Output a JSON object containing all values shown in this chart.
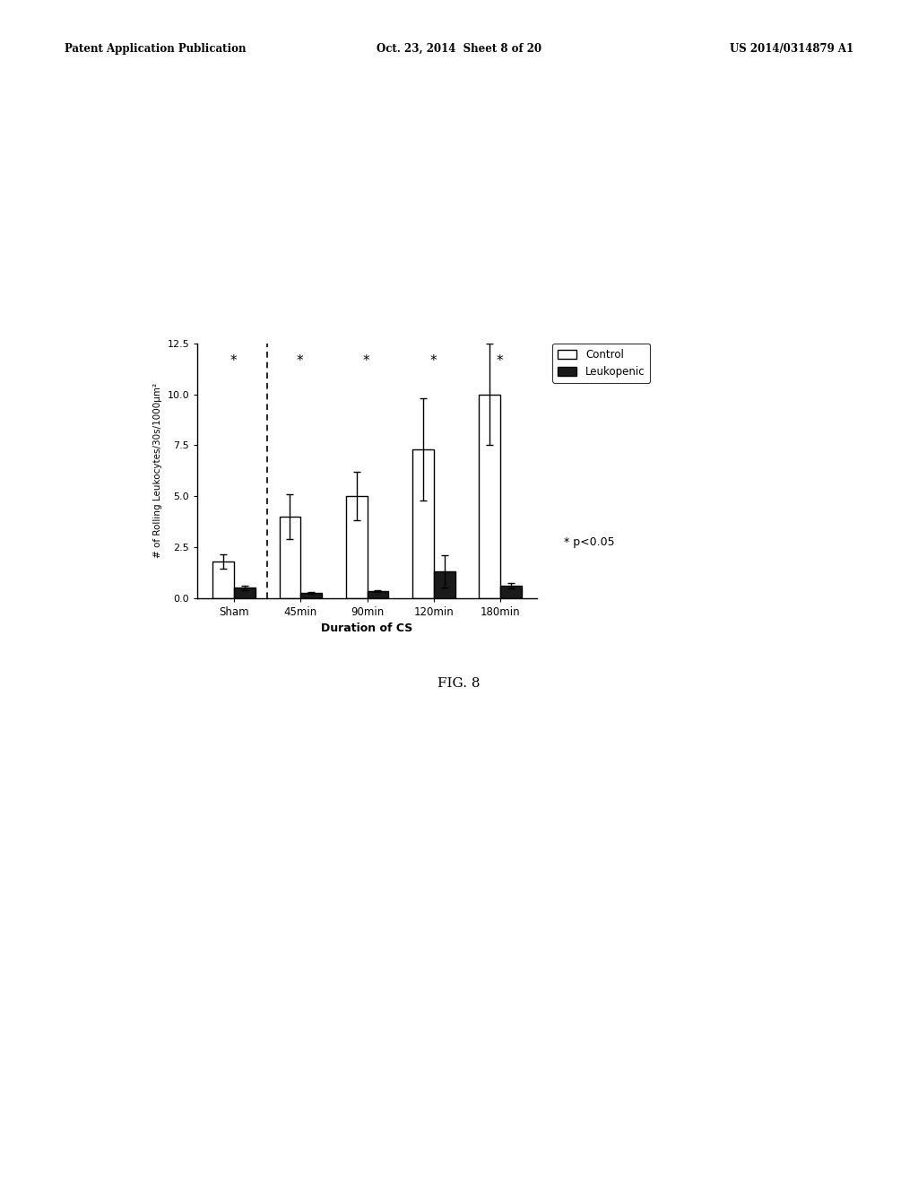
{
  "categories": [
    "Sham",
    "45min",
    "90min",
    "120min",
    "180min"
  ],
  "control_values": [
    1.8,
    4.0,
    5.0,
    7.3,
    10.0
  ],
  "control_errors": [
    0.35,
    1.1,
    1.2,
    2.5,
    2.5
  ],
  "leukopenic_values": [
    0.5,
    0.25,
    0.35,
    1.3,
    0.6
  ],
  "leukopenic_errors": [
    0.1,
    0.05,
    0.05,
    0.8,
    0.15
  ],
  "ylabel": "# of Rolling Leukocytes/30s/1000μm²",
  "xlabel": "Duration of CS",
  "ylim": [
    0,
    12.5
  ],
  "yticks": [
    0.0,
    2.5,
    5.0,
    7.5,
    10.0,
    12.5
  ],
  "legend_labels": [
    "Control",
    "Leukopenic"
  ],
  "significance_text": "* p<0.05",
  "fig_title_left": "Patent Application Publication",
  "fig_title_mid": "Oct. 23, 2014  Sheet 8 of 20",
  "fig_title_right": "US 2014/0314879 A1",
  "fig_label": "FIG. 8",
  "bar_width": 0.32,
  "control_color": "#ffffff",
  "leukopenic_color": "#1a1a1a",
  "edgecolor": "#000000"
}
